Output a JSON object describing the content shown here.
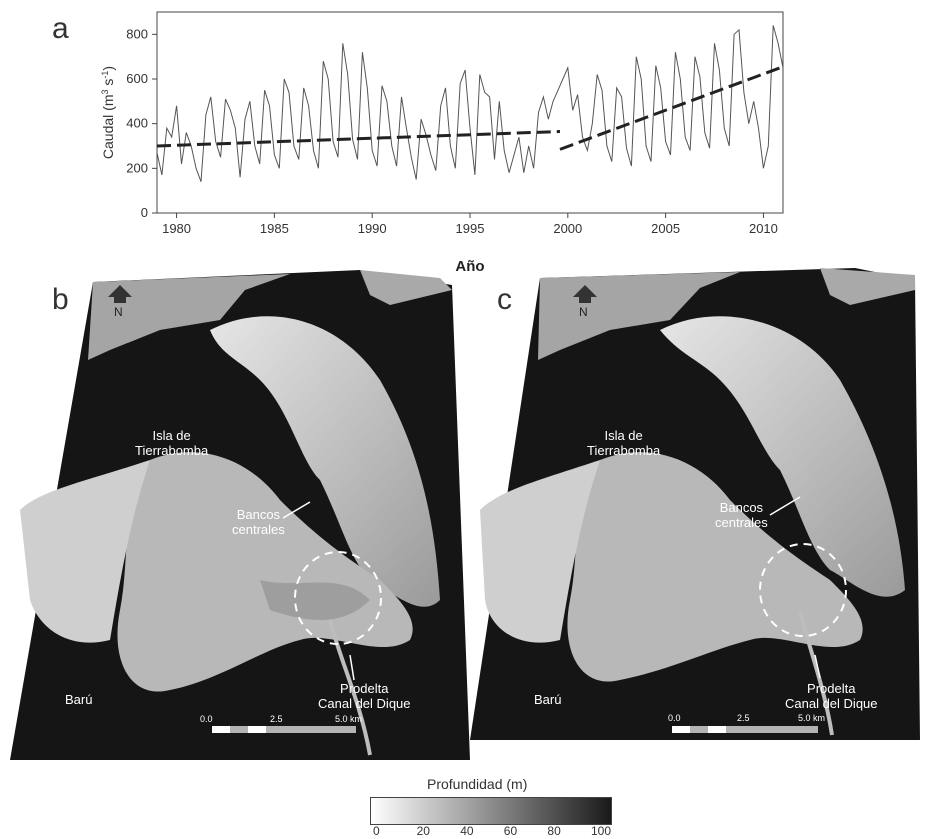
{
  "panels": {
    "a": "a",
    "b": "b",
    "c": "c"
  },
  "chart_data": {
    "type": "line",
    "xlabel": "Año",
    "ylabel_main": "Caudal (m",
    "ylabel_sup1": "3",
    "ylabel_mid": " s",
    "ylabel_sup2": "-1",
    "ylabel_end": ")",
    "xlim": [
      1979,
      2011
    ],
    "ylim": [
      0,
      900
    ],
    "x_ticks": [
      1980,
      1985,
      1990,
      1995,
      2000,
      2005,
      2010
    ],
    "y_ticks": [
      0,
      200,
      400,
      600,
      800
    ],
    "series": [
      {
        "values": [
          [
            1979.0,
            270
          ],
          [
            1979.25,
            170
          ],
          [
            1979.5,
            380
          ],
          [
            1979.75,
            340
          ],
          [
            1980.0,
            480
          ],
          [
            1980.25,
            220
          ],
          [
            1980.5,
            360
          ],
          [
            1980.75,
            300
          ],
          [
            1981.0,
            200
          ],
          [
            1981.25,
            140
          ],
          [
            1981.5,
            440
          ],
          [
            1981.75,
            520
          ],
          [
            1982.0,
            320
          ],
          [
            1982.25,
            250
          ],
          [
            1982.5,
            510
          ],
          [
            1982.75,
            460
          ],
          [
            1983.0,
            380
          ],
          [
            1983.25,
            160
          ],
          [
            1983.5,
            420
          ],
          [
            1983.75,
            500
          ],
          [
            1984.0,
            300
          ],
          [
            1984.25,
            220
          ],
          [
            1984.5,
            550
          ],
          [
            1984.75,
            480
          ],
          [
            1985.0,
            260
          ],
          [
            1985.25,
            200
          ],
          [
            1985.5,
            600
          ],
          [
            1985.75,
            540
          ],
          [
            1986.0,
            300
          ],
          [
            1986.25,
            240
          ],
          [
            1986.5,
            560
          ],
          [
            1986.75,
            480
          ],
          [
            1987.0,
            280
          ],
          [
            1987.25,
            200
          ],
          [
            1987.5,
            680
          ],
          [
            1987.75,
            600
          ],
          [
            1988.0,
            320
          ],
          [
            1988.25,
            250
          ],
          [
            1988.5,
            760
          ],
          [
            1988.75,
            620
          ],
          [
            1989.0,
            330
          ],
          [
            1989.25,
            240
          ],
          [
            1989.5,
            720
          ],
          [
            1989.75,
            560
          ],
          [
            1990.0,
            280
          ],
          [
            1990.25,
            210
          ],
          [
            1990.5,
            570
          ],
          [
            1990.75,
            500
          ],
          [
            1991.0,
            300
          ],
          [
            1991.25,
            210
          ],
          [
            1991.5,
            520
          ],
          [
            1991.75,
            380
          ],
          [
            1992.0,
            250
          ],
          [
            1992.25,
            150
          ],
          [
            1992.5,
            420
          ],
          [
            1992.75,
            350
          ],
          [
            1993.0,
            260
          ],
          [
            1993.25,
            190
          ],
          [
            1993.5,
            480
          ],
          [
            1993.75,
            560
          ],
          [
            1994.0,
            300
          ],
          [
            1994.25,
            200
          ],
          [
            1994.5,
            580
          ],
          [
            1994.75,
            640
          ],
          [
            1995.0,
            380
          ],
          [
            1995.25,
            170
          ],
          [
            1995.5,
            620
          ],
          [
            1995.75,
            540
          ],
          [
            1996.0,
            520
          ],
          [
            1996.25,
            240
          ],
          [
            1996.5,
            500
          ],
          [
            1996.75,
            280
          ],
          [
            1997.0,
            180
          ],
          [
            1997.25,
            260
          ],
          [
            1997.5,
            340
          ],
          [
            1997.75,
            180
          ],
          [
            1998.0,
            300
          ],
          [
            1998.25,
            200
          ],
          [
            1998.5,
            450
          ],
          [
            1998.75,
            520
          ],
          [
            1999.0,
            420
          ],
          [
            1999.25,
            500
          ],
          [
            1999.5,
            550
          ],
          [
            1999.75,
            600
          ],
          [
            2000.0,
            650
          ],
          [
            2000.25,
            460
          ],
          [
            2000.5,
            530
          ],
          [
            2000.75,
            340
          ],
          [
            2001.0,
            280
          ],
          [
            2001.25,
            400
          ],
          [
            2001.5,
            620
          ],
          [
            2001.75,
            550
          ],
          [
            2002.0,
            300
          ],
          [
            2002.25,
            230
          ],
          [
            2002.5,
            560
          ],
          [
            2002.75,
            520
          ],
          [
            2003.0,
            290
          ],
          [
            2003.25,
            210
          ],
          [
            2003.5,
            700
          ],
          [
            2003.75,
            600
          ],
          [
            2004.0,
            300
          ],
          [
            2004.25,
            230
          ],
          [
            2004.5,
            660
          ],
          [
            2004.75,
            560
          ],
          [
            2005.0,
            320
          ],
          [
            2005.25,
            260
          ],
          [
            2005.5,
            720
          ],
          [
            2005.75,
            600
          ],
          [
            2006.0,
            340
          ],
          [
            2006.25,
            280
          ],
          [
            2006.5,
            700
          ],
          [
            2006.75,
            610
          ],
          [
            2007.0,
            360
          ],
          [
            2007.25,
            290
          ],
          [
            2007.5,
            760
          ],
          [
            2007.75,
            640
          ],
          [
            2008.0,
            380
          ],
          [
            2008.25,
            300
          ],
          [
            2008.5,
            800
          ],
          [
            2008.75,
            820
          ],
          [
            2009.0,
            540
          ],
          [
            2009.25,
            400
          ],
          [
            2009.5,
            500
          ],
          [
            2009.75,
            380
          ],
          [
            2010.0,
            200
          ],
          [
            2010.25,
            300
          ],
          [
            2010.5,
            840
          ],
          [
            2010.75,
            760
          ],
          [
            2011.0,
            650
          ]
        ]
      }
    ],
    "trends": [
      {
        "x": [
          1979,
          1999.6
        ],
        "y": [
          300,
          365
        ]
      },
      {
        "x": [
          1999.6,
          2011
        ],
        "y": [
          285,
          655
        ]
      }
    ]
  },
  "maps": {
    "b": {
      "north": "N",
      "island": "Isla de\nTierrabomba",
      "banks": "Bancos\ncentrales",
      "baru": "Barú",
      "prodelta": "Prodelta\nCanal del Dique",
      "scale": [
        "0.0",
        "2.5",
        "5.0 km"
      ]
    },
    "c": {
      "north": "N",
      "island": "Isla de\nTierrabomba",
      "banks": "Bancos\ncentrales",
      "baru": "Barú",
      "prodelta": "Prodelta\nCanal del Dique",
      "scale": [
        "0.0",
        "2.5",
        "5.0 km"
      ]
    }
  },
  "legend": {
    "title": "Profundidad (m)",
    "ticks": [
      "0",
      "20",
      "40",
      "60",
      "80",
      "100"
    ],
    "colors": {
      "shallow": "#ffffff",
      "deep": "#1a1a1a"
    }
  }
}
